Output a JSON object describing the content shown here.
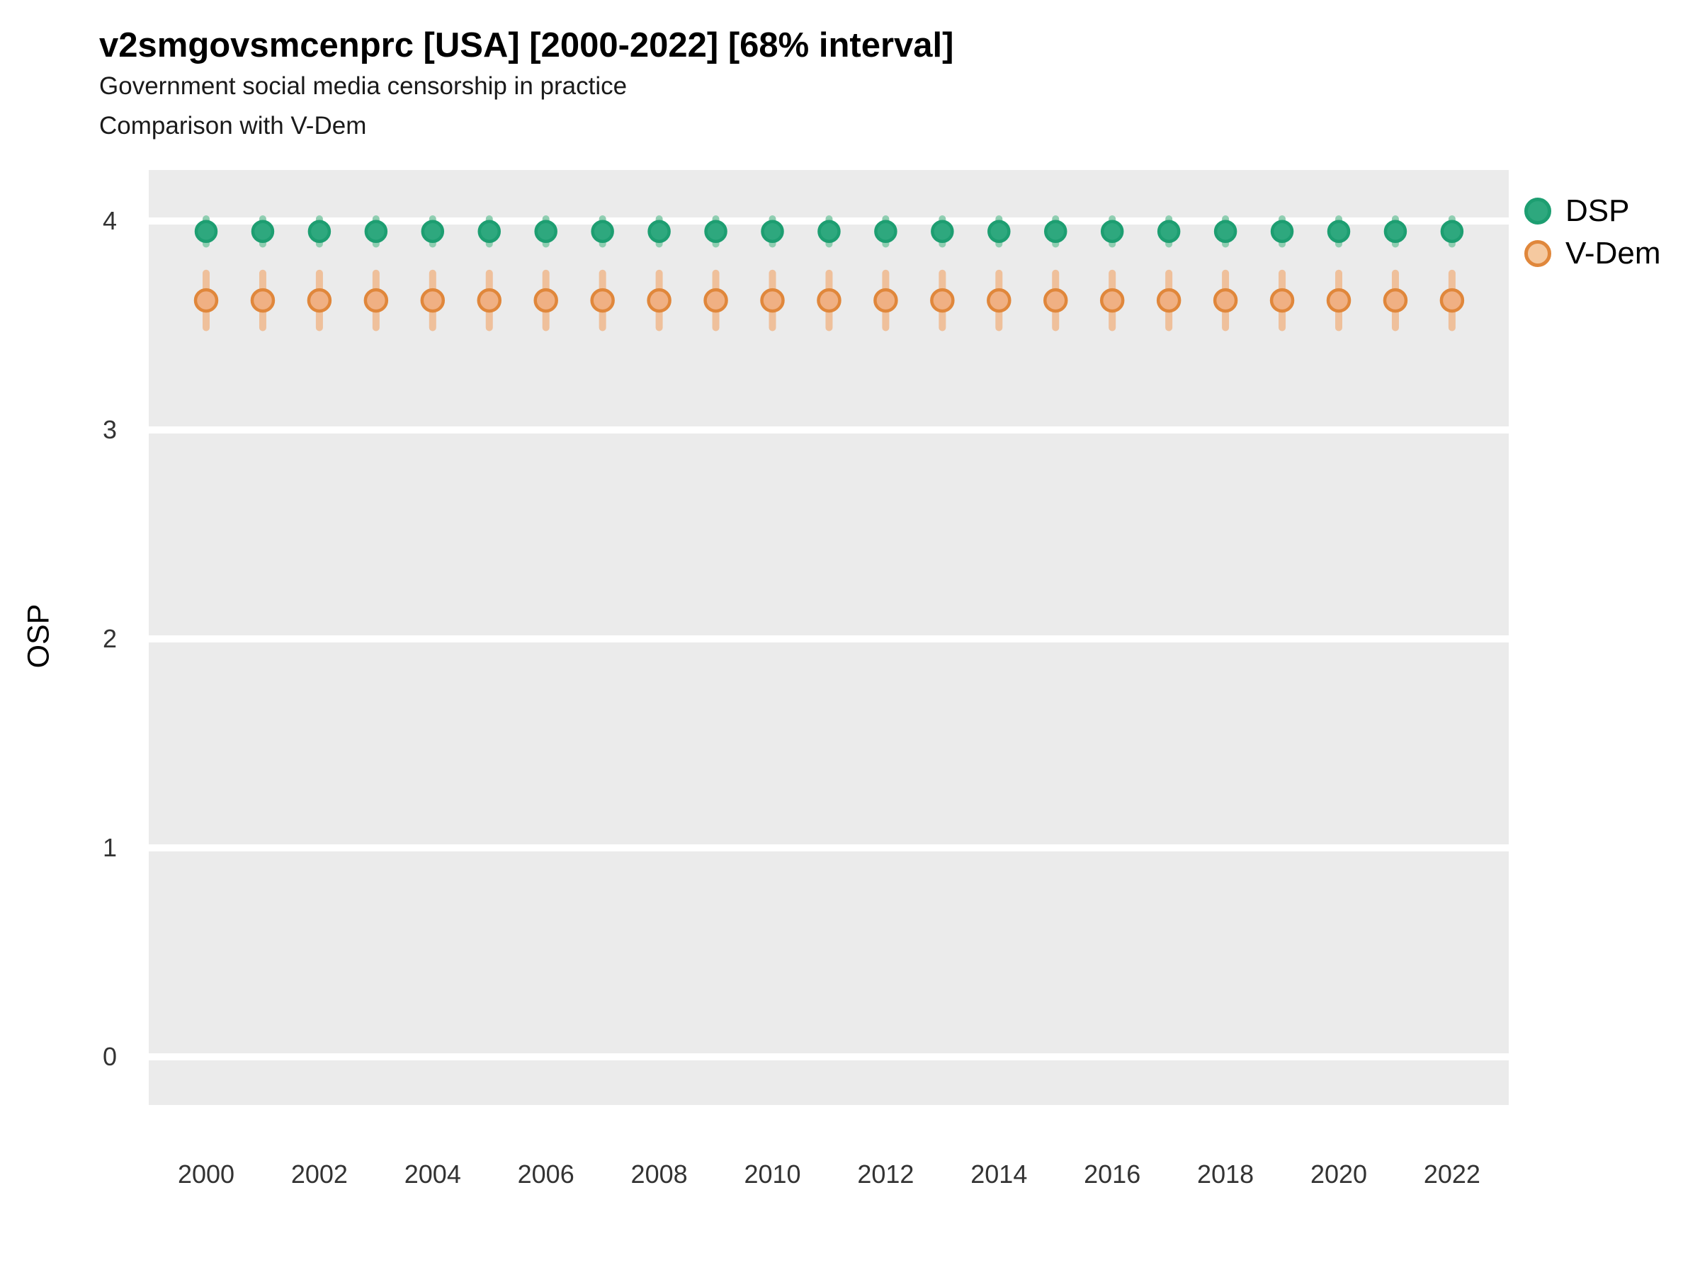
{
  "header": {
    "title": "v2smgovsmcenprc [USA] [2000-2022] [68% interval]",
    "subtitle1": "Government social media censorship in practice",
    "subtitle2": "Comparison with V-Dem"
  },
  "axes": {
    "y_title": "OSP",
    "x_title": "",
    "y_tick_labels": [
      "4",
      "3",
      "2",
      "1",
      "0"
    ],
    "x_tick_labels": [
      "2000",
      "2002",
      "2004",
      "2006",
      "2008",
      "2010",
      "2012",
      "2014",
      "2016",
      "2018",
      "2020",
      "2022"
    ]
  },
  "legend": {
    "position": "right",
    "items": [
      {
        "label": "DSP"
      },
      {
        "label": "V-Dem"
      }
    ]
  },
  "colors": {
    "panel_background": "#EBEBEB",
    "gridline": "#FFFFFF",
    "dsp_fill": "#2EA87E",
    "dsp_stroke": "#1D9E71",
    "dsp_interval": "#8FCEB1",
    "vdem_fill": "#F0B083",
    "vdem_stroke": "#E0873B",
    "vdem_interval": "#EFC09B",
    "vdem_legend_fill": "#F5C9A0"
  },
  "chart_data": {
    "type": "scatter",
    "style": "pointrange",
    "title": "v2smgovsmcenprc [USA] [2000-2022] [68% interval]",
    "subtitle": "Government social media censorship in practice — Comparison with V-Dem",
    "xlabel": "",
    "ylabel": "OSP",
    "interval": "68%",
    "grid": "horizontal-major-only",
    "legend_position": "right",
    "ylim": [
      0,
      4
    ],
    "y_ticks": [
      0,
      1,
      2,
      3,
      4
    ],
    "x_ticks": [
      2000,
      2002,
      2004,
      2006,
      2008,
      2010,
      2012,
      2014,
      2016,
      2018,
      2020,
      2022
    ],
    "x": [
      2000,
      2001,
      2002,
      2003,
      2004,
      2005,
      2006,
      2007,
      2008,
      2009,
      2010,
      2011,
      2012,
      2013,
      2014,
      2015,
      2016,
      2017,
      2018,
      2019,
      2020,
      2021,
      2022
    ],
    "series": [
      {
        "name": "DSP",
        "fill": "#2EA87E",
        "stroke": "#1D9E71",
        "bar_color": "#8FCEB1",
        "est": [
          3.95,
          3.95,
          3.95,
          3.95,
          3.95,
          3.95,
          3.95,
          3.95,
          3.95,
          3.95,
          3.95,
          3.95,
          3.95,
          3.95,
          3.95,
          3.95,
          3.95,
          3.95,
          3.95,
          3.95,
          3.95,
          3.95,
          3.95
        ],
        "lo": [
          3.89,
          3.89,
          3.89,
          3.89,
          3.89,
          3.89,
          3.89,
          3.89,
          3.89,
          3.89,
          3.89,
          3.89,
          3.89,
          3.89,
          3.89,
          3.89,
          3.89,
          3.89,
          3.89,
          3.89,
          3.89,
          3.89,
          3.89
        ],
        "hi": [
          4.01,
          4.01,
          4.01,
          4.01,
          4.01,
          4.01,
          4.01,
          4.01,
          4.01,
          4.01,
          4.01,
          4.01,
          4.01,
          4.01,
          4.01,
          4.01,
          4.01,
          4.01,
          4.01,
          4.01,
          4.01,
          4.01,
          4.01
        ]
      },
      {
        "name": "V-Dem",
        "fill": "#F0B083",
        "stroke": "#E0873B",
        "bar_color": "#EFC09B",
        "est": [
          3.62,
          3.62,
          3.62,
          3.62,
          3.62,
          3.62,
          3.62,
          3.62,
          3.62,
          3.62,
          3.62,
          3.62,
          3.62,
          3.62,
          3.62,
          3.62,
          3.62,
          3.62,
          3.62,
          3.62,
          3.62,
          3.62,
          3.62
        ],
        "lo": [
          3.49,
          3.49,
          3.49,
          3.49,
          3.49,
          3.49,
          3.49,
          3.49,
          3.49,
          3.49,
          3.49,
          3.49,
          3.49,
          3.49,
          3.49,
          3.49,
          3.49,
          3.49,
          3.49,
          3.49,
          3.49,
          3.49,
          3.49
        ],
        "hi": [
          3.75,
          3.75,
          3.75,
          3.75,
          3.75,
          3.75,
          3.75,
          3.75,
          3.75,
          3.75,
          3.75,
          3.75,
          3.75,
          3.75,
          3.75,
          3.75,
          3.75,
          3.75,
          3.75,
          3.75,
          3.75,
          3.75,
          3.75
        ]
      }
    ]
  }
}
